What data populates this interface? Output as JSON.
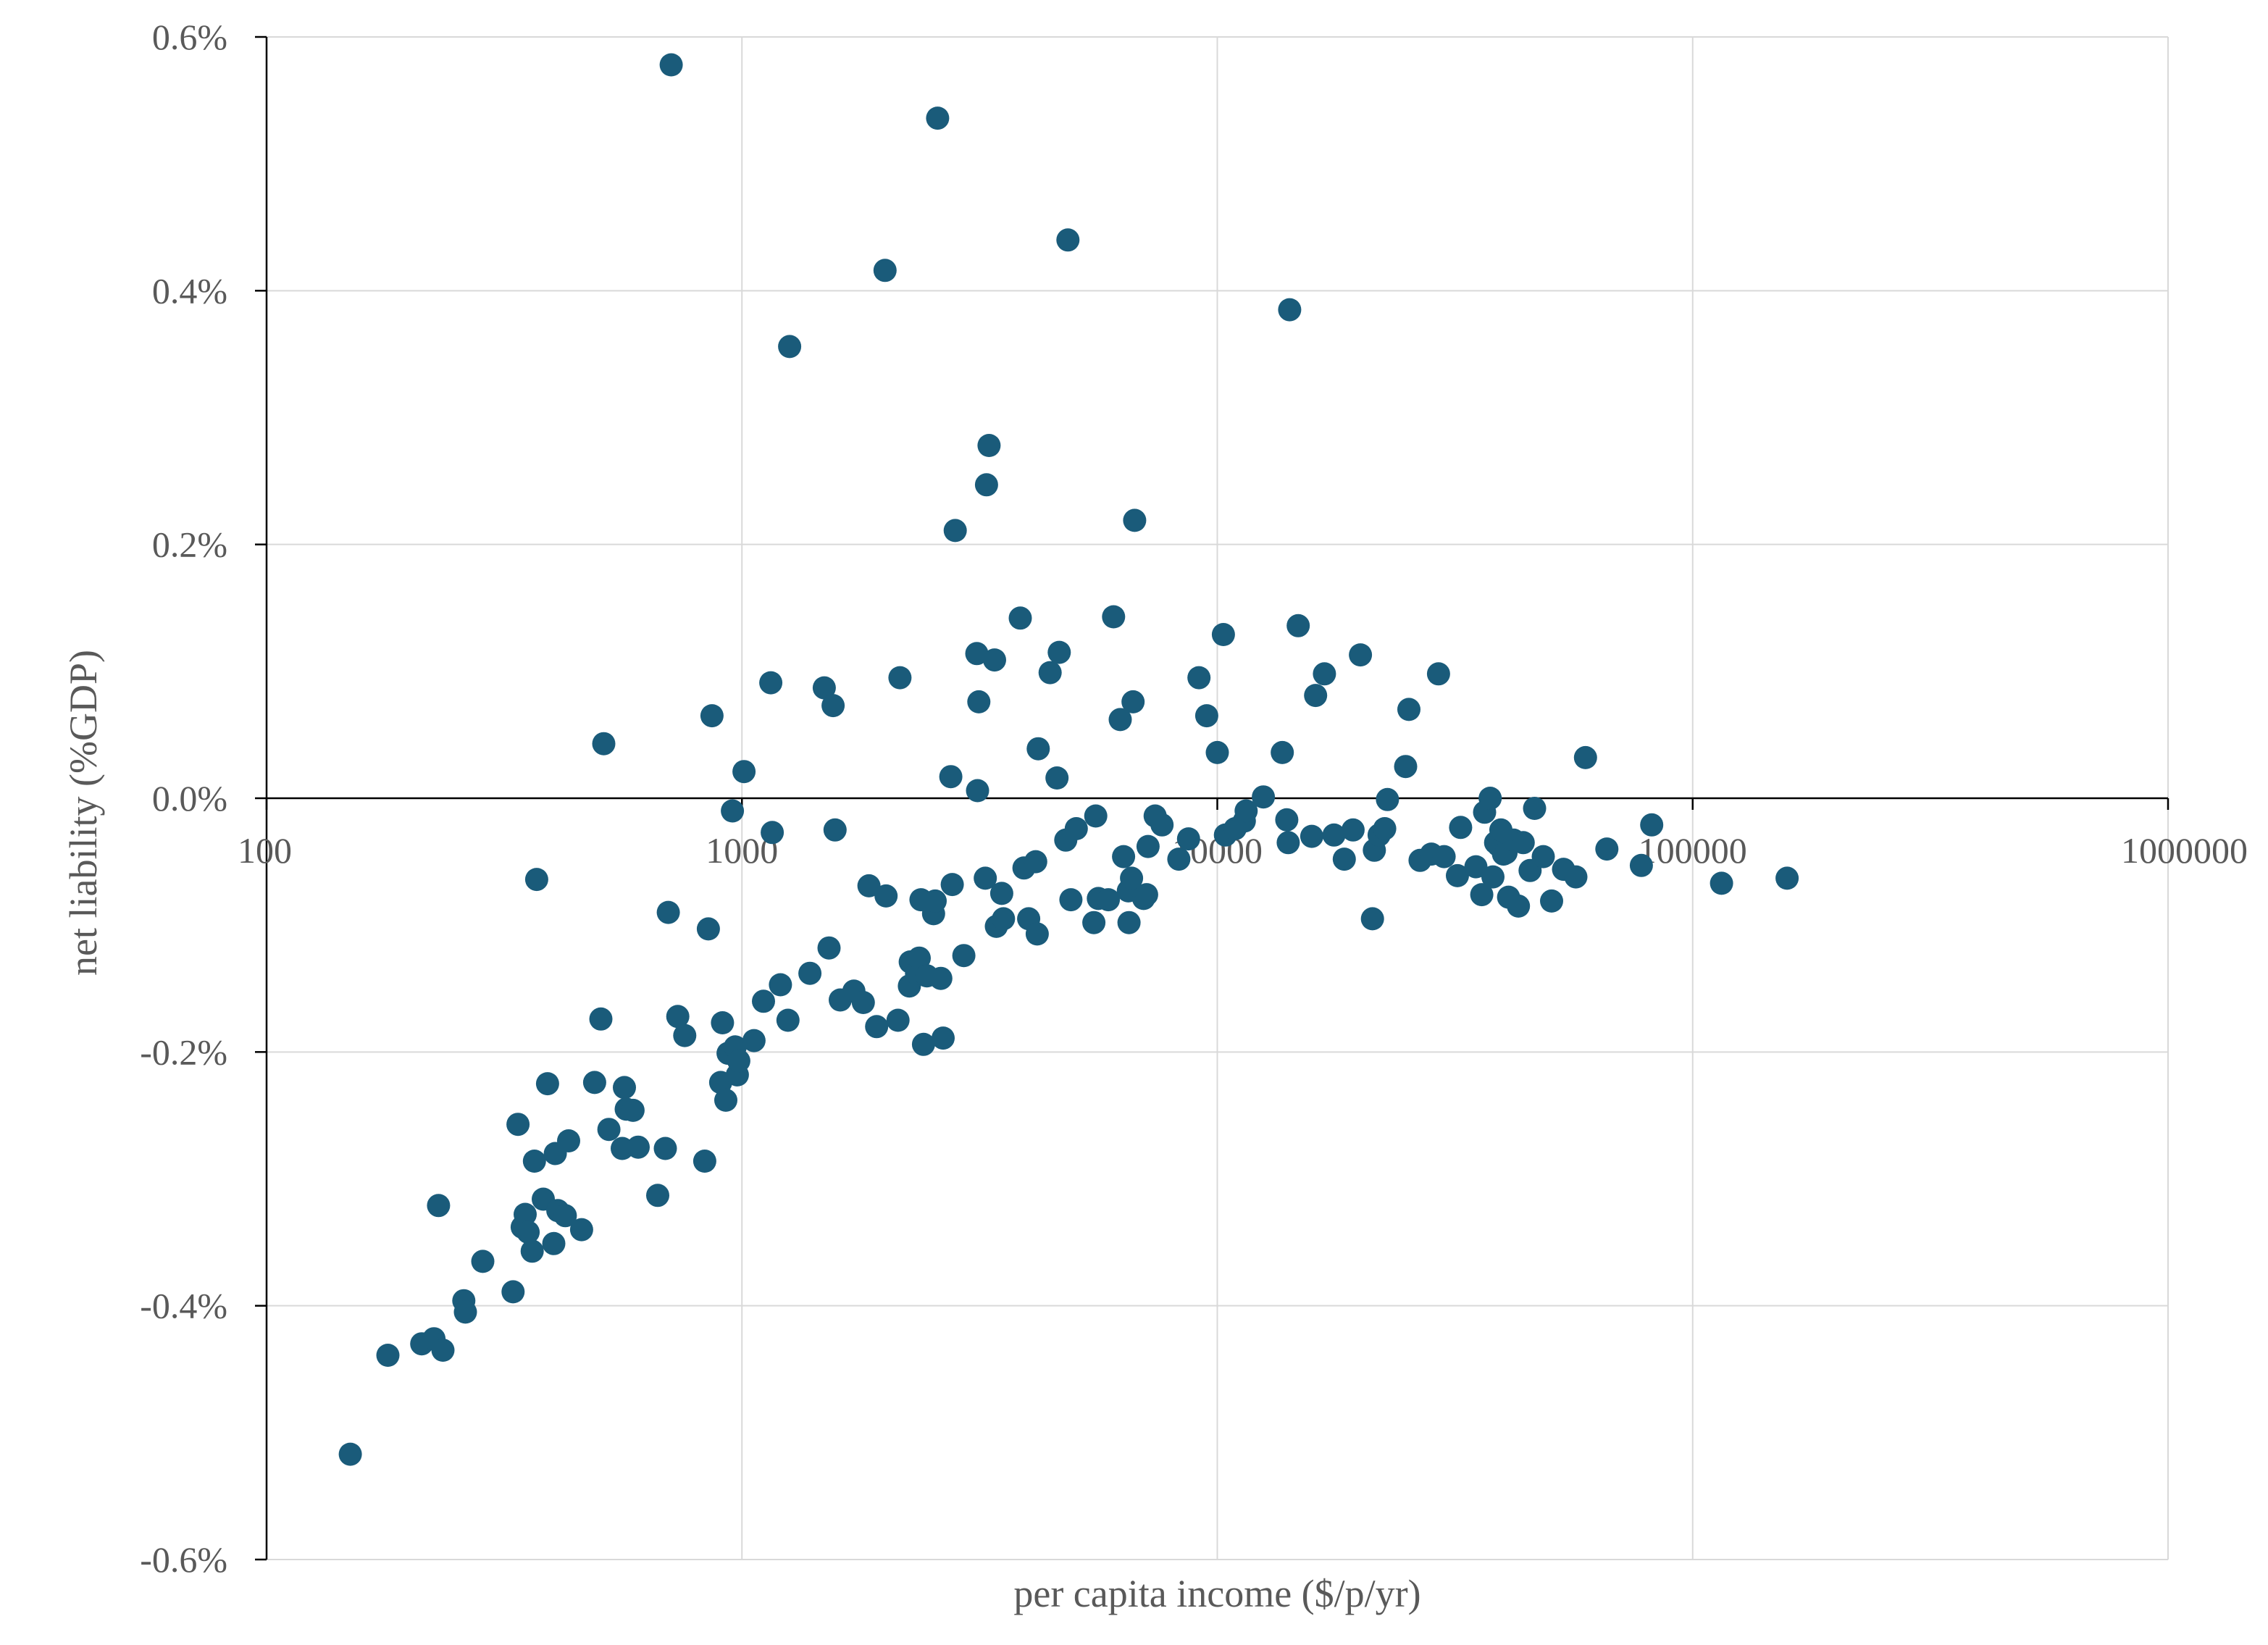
{
  "chart_data": {
    "type": "scatter",
    "xlabel": "per capita income ($/p/yr)",
    "ylabel": "net liability (%GDP)",
    "x_scale": "log",
    "xlim": [
      100,
      1000000
    ],
    "ylim": [
      -0.6,
      0.6
    ],
    "x_ticks": [
      "100",
      "1000",
      "10000",
      "100000",
      "1000000"
    ],
    "x_tick_values": [
      100,
      1000,
      10000,
      100000,
      1000000
    ],
    "y_ticks": [
      "0.6%",
      "0.4%",
      "0.2%",
      "0.0%",
      "-0.2%",
      "-0.4%",
      "-0.6%"
    ],
    "y_tick_values": [
      0.6,
      0.4,
      0.2,
      0.0,
      -0.2,
      -0.4,
      -0.6
    ],
    "grid": true,
    "marker_color": "#1a5b7a",
    "points": [
      {
        "x": 150,
        "y": -0.517
      },
      {
        "x": 180,
        "y": -0.439
      },
      {
        "x": 212,
        "y": -0.43
      },
      {
        "x": 225,
        "y": -0.426
      },
      {
        "x": 235,
        "y": -0.435
      },
      {
        "x": 230,
        "y": -0.321
      },
      {
        "x": 260,
        "y": -0.396
      },
      {
        "x": 262,
        "y": -0.405
      },
      {
        "x": 285,
        "y": -0.365
      },
      {
        "x": 330,
        "y": -0.389
      },
      {
        "x": 338,
        "y": -0.257
      },
      {
        "x": 345,
        "y": -0.338
      },
      {
        "x": 350,
        "y": -0.328
      },
      {
        "x": 355,
        "y": -0.342
      },
      {
        "x": 362,
        "y": -0.357
      },
      {
        "x": 366,
        "y": -0.286
      },
      {
        "x": 370,
        "y": -0.064
      },
      {
        "x": 382,
        "y": -0.316
      },
      {
        "x": 390,
        "y": -0.225
      },
      {
        "x": 402,
        "y": -0.351
      },
      {
        "x": 405,
        "y": -0.28
      },
      {
        "x": 410,
        "y": -0.325
      },
      {
        "x": 425,
        "y": -0.329
      },
      {
        "x": 432,
        "y": -0.27
      },
      {
        "x": 460,
        "y": -0.34
      },
      {
        "x": 490,
        "y": -0.224
      },
      {
        "x": 505,
        "y": -0.174
      },
      {
        "x": 512,
        "y": 0.043
      },
      {
        "x": 525,
        "y": -0.261
      },
      {
        "x": 560,
        "y": -0.276
      },
      {
        "x": 566,
        "y": -0.228
      },
      {
        "x": 571,
        "y": -0.245
      },
      {
        "x": 590,
        "y": -0.246
      },
      {
        "x": 605,
        "y": -0.275
      },
      {
        "x": 665,
        "y": -0.313
      },
      {
        "x": 690,
        "y": -0.276
      },
      {
        "x": 710,
        "y": 0.578
      },
      {
        "x": 700,
        "y": -0.09
      },
      {
        "x": 733,
        "y": -0.172
      },
      {
        "x": 758,
        "y": -0.187
      },
      {
        "x": 835,
        "y": -0.286
      },
      {
        "x": 850,
        "y": -0.103
      },
      {
        "x": 865,
        "y": 0.065
      },
      {
        "x": 902,
        "y": -0.224
      },
      {
        "x": 910,
        "y": -0.177
      },
      {
        "x": 925,
        "y": -0.238
      },
      {
        "x": 935,
        "y": -0.201
      },
      {
        "x": 955,
        "y": -0.01
      },
      {
        "x": 968,
        "y": -0.196
      },
      {
        "x": 978,
        "y": -0.218
      },
      {
        "x": 985,
        "y": -0.207
      },
      {
        "x": 1010,
        "y": 0.021
      },
      {
        "x": 1060,
        "y": -0.191
      },
      {
        "x": 1110,
        "y": -0.16
      },
      {
        "x": 1150,
        "y": 0.091
      },
      {
        "x": 1158,
        "y": -0.027
      },
      {
        "x": 1205,
        "y": -0.147
      },
      {
        "x": 1250,
        "y": -0.175
      },
      {
        "x": 1260,
        "y": 0.356
      },
      {
        "x": 1390,
        "y": -0.138
      },
      {
        "x": 1490,
        "y": 0.087
      },
      {
        "x": 1525,
        "y": -0.118
      },
      {
        "x": 1555,
        "y": 0.073
      },
      {
        "x": 1570,
        "y": -0.025
      },
      {
        "x": 1610,
        "y": -0.159
      },
      {
        "x": 1720,
        "y": -0.152
      },
      {
        "x": 1800,
        "y": -0.161
      },
      {
        "x": 1850,
        "y": -0.069
      },
      {
        "x": 1920,
        "y": -0.18
      },
      {
        "x": 2000,
        "y": 0.416
      },
      {
        "x": 2010,
        "y": -0.077
      },
      {
        "x": 2150,
        "y": 0.095
      },
      {
        "x": 2130,
        "y": -0.175
      },
      {
        "x": 2250,
        "y": -0.148
      },
      {
        "x": 2260,
        "y": -0.129
      },
      {
        "x": 2330,
        "y": -0.138
      },
      {
        "x": 2360,
        "y": -0.126
      },
      {
        "x": 2380,
        "y": -0.08
      },
      {
        "x": 2410,
        "y": -0.194
      },
      {
        "x": 2450,
        "y": -0.14
      },
      {
        "x": 2530,
        "y": -0.091
      },
      {
        "x": 2550,
        "y": -0.081
      },
      {
        "x": 2580,
        "y": 0.536
      },
      {
        "x": 2620,
        "y": -0.142
      },
      {
        "x": 2650,
        "y": -0.189
      },
      {
        "x": 2750,
        "y": 0.017
      },
      {
        "x": 2770,
        "y": -0.068
      },
      {
        "x": 2810,
        "y": 0.211
      },
      {
        "x": 2930,
        "y": -0.124
      },
      {
        "x": 3120,
        "y": 0.114
      },
      {
        "x": 3130,
        "y": 0.006
      },
      {
        "x": 3150,
        "y": 0.076
      },
      {
        "x": 3250,
        "y": -0.063
      },
      {
        "x": 3270,
        "y": 0.247
      },
      {
        "x": 3310,
        "y": 0.278
      },
      {
        "x": 3400,
        "y": 0.109
      },
      {
        "x": 3430,
        "y": -0.101
      },
      {
        "x": 3520,
        "y": -0.075
      },
      {
        "x": 3550,
        "y": -0.095
      },
      {
        "x": 3850,
        "y": 0.142
      },
      {
        "x": 3920,
        "y": -0.055
      },
      {
        "x": 4010,
        "y": -0.095
      },
      {
        "x": 4150,
        "y": -0.05
      },
      {
        "x": 4200,
        "y": 0.039
      },
      {
        "x": 4180,
        "y": -0.107
      },
      {
        "x": 4450,
        "y": 0.099
      },
      {
        "x": 4600,
        "y": 0.016
      },
      {
        "x": 4650,
        "y": 0.115
      },
      {
        "x": 4800,
        "y": -0.033
      },
      {
        "x": 4850,
        "y": 0.44
      },
      {
        "x": 4920,
        "y": -0.08
      },
      {
        "x": 5050,
        "y": -0.024
      },
      {
        "x": 5500,
        "y": -0.098
      },
      {
        "x": 5550,
        "y": -0.014
      },
      {
        "x": 5620,
        "y": -0.079
      },
      {
        "x": 5900,
        "y": -0.08
      },
      {
        "x": 6050,
        "y": 0.143
      },
      {
        "x": 6250,
        "y": 0.062
      },
      {
        "x": 6350,
        "y": -0.046
      },
      {
        "x": 6500,
        "y": -0.073
      },
      {
        "x": 6520,
        "y": -0.098
      },
      {
        "x": 6600,
        "y": -0.063
      },
      {
        "x": 6650,
        "y": 0.076
      },
      {
        "x": 6700,
        "y": 0.219
      },
      {
        "x": 7000,
        "y": -0.079
      },
      {
        "x": 7100,
        "y": -0.076
      },
      {
        "x": 7150,
        "y": -0.038
      },
      {
        "x": 7400,
        "y": -0.014
      },
      {
        "x": 7650,
        "y": -0.021
      },
      {
        "x": 8300,
        "y": -0.048
      },
      {
        "x": 8700,
        "y": -0.032
      },
      {
        "x": 9150,
        "y": 0.095
      },
      {
        "x": 9500,
        "y": 0.065
      },
      {
        "x": 10000,
        "y": 0.036
      },
      {
        "x": 10300,
        "y": 0.129
      },
      {
        "x": 10400,
        "y": -0.029
      },
      {
        "x": 10900,
        "y": -0.024
      },
      {
        "x": 11400,
        "y": -0.018
      },
      {
        "x": 11500,
        "y": -0.01
      },
      {
        "x": 12500,
        "y": 0.001
      },
      {
        "x": 13700,
        "y": 0.036
      },
      {
        "x": 14000,
        "y": -0.017
      },
      {
        "x": 14100,
        "y": -0.035
      },
      {
        "x": 14200,
        "y": 0.385
      },
      {
        "x": 14800,
        "y": 0.136
      },
      {
        "x": 15800,
        "y": -0.03
      },
      {
        "x": 16100,
        "y": 0.081
      },
      {
        "x": 16800,
        "y": 0.098
      },
      {
        "x": 17600,
        "y": -0.029
      },
      {
        "x": 18500,
        "y": -0.048
      },
      {
        "x": 19300,
        "y": -0.025
      },
      {
        "x": 20000,
        "y": 0.113
      },
      {
        "x": 21200,
        "y": -0.095
      },
      {
        "x": 21400,
        "y": -0.041
      },
      {
        "x": 21900,
        "y": -0.029
      },
      {
        "x": 22500,
        "y": -0.024
      },
      {
        "x": 22800,
        "y": -0.001
      },
      {
        "x": 24900,
        "y": 0.025
      },
      {
        "x": 25300,
        "y": 0.07
      },
      {
        "x": 26700,
        "y": -0.049
      },
      {
        "x": 28200,
        "y": -0.044
      },
      {
        "x": 29200,
        "y": 0.098
      },
      {
        "x": 30000,
        "y": -0.046
      },
      {
        "x": 32000,
        "y": -0.061
      },
      {
        "x": 32500,
        "y": -0.023
      },
      {
        "x": 35000,
        "y": -0.054
      },
      {
        "x": 36000,
        "y": -0.076
      },
      {
        "x": 36500,
        "y": -0.011
      },
      {
        "x": 37500,
        "y": 0.0
      },
      {
        "x": 38000,
        "y": -0.062
      },
      {
        "x": 38500,
        "y": -0.035
      },
      {
        "x": 39000,
        "y": -0.037
      },
      {
        "x": 39500,
        "y": -0.025
      },
      {
        "x": 40000,
        "y": -0.044
      },
      {
        "x": 40500,
        "y": -0.043
      },
      {
        "x": 41000,
        "y": -0.078
      },
      {
        "x": 42000,
        "y": -0.033
      },
      {
        "x": 43000,
        "y": -0.085
      },
      {
        "x": 44000,
        "y": -0.035
      },
      {
        "x": 45500,
        "y": -0.057
      },
      {
        "x": 46500,
        "y": -0.008
      },
      {
        "x": 48500,
        "y": -0.046
      },
      {
        "x": 50500,
        "y": -0.081
      },
      {
        "x": 53500,
        "y": -0.056
      },
      {
        "x": 56800,
        "y": -0.062
      },
      {
        "x": 59500,
        "y": 0.032
      },
      {
        "x": 66000,
        "y": -0.04
      },
      {
        "x": 78000,
        "y": -0.053
      },
      {
        "x": 82000,
        "y": -0.021
      },
      {
        "x": 115000,
        "y": -0.067
      },
      {
        "x": 158000,
        "y": -0.063
      }
    ]
  }
}
